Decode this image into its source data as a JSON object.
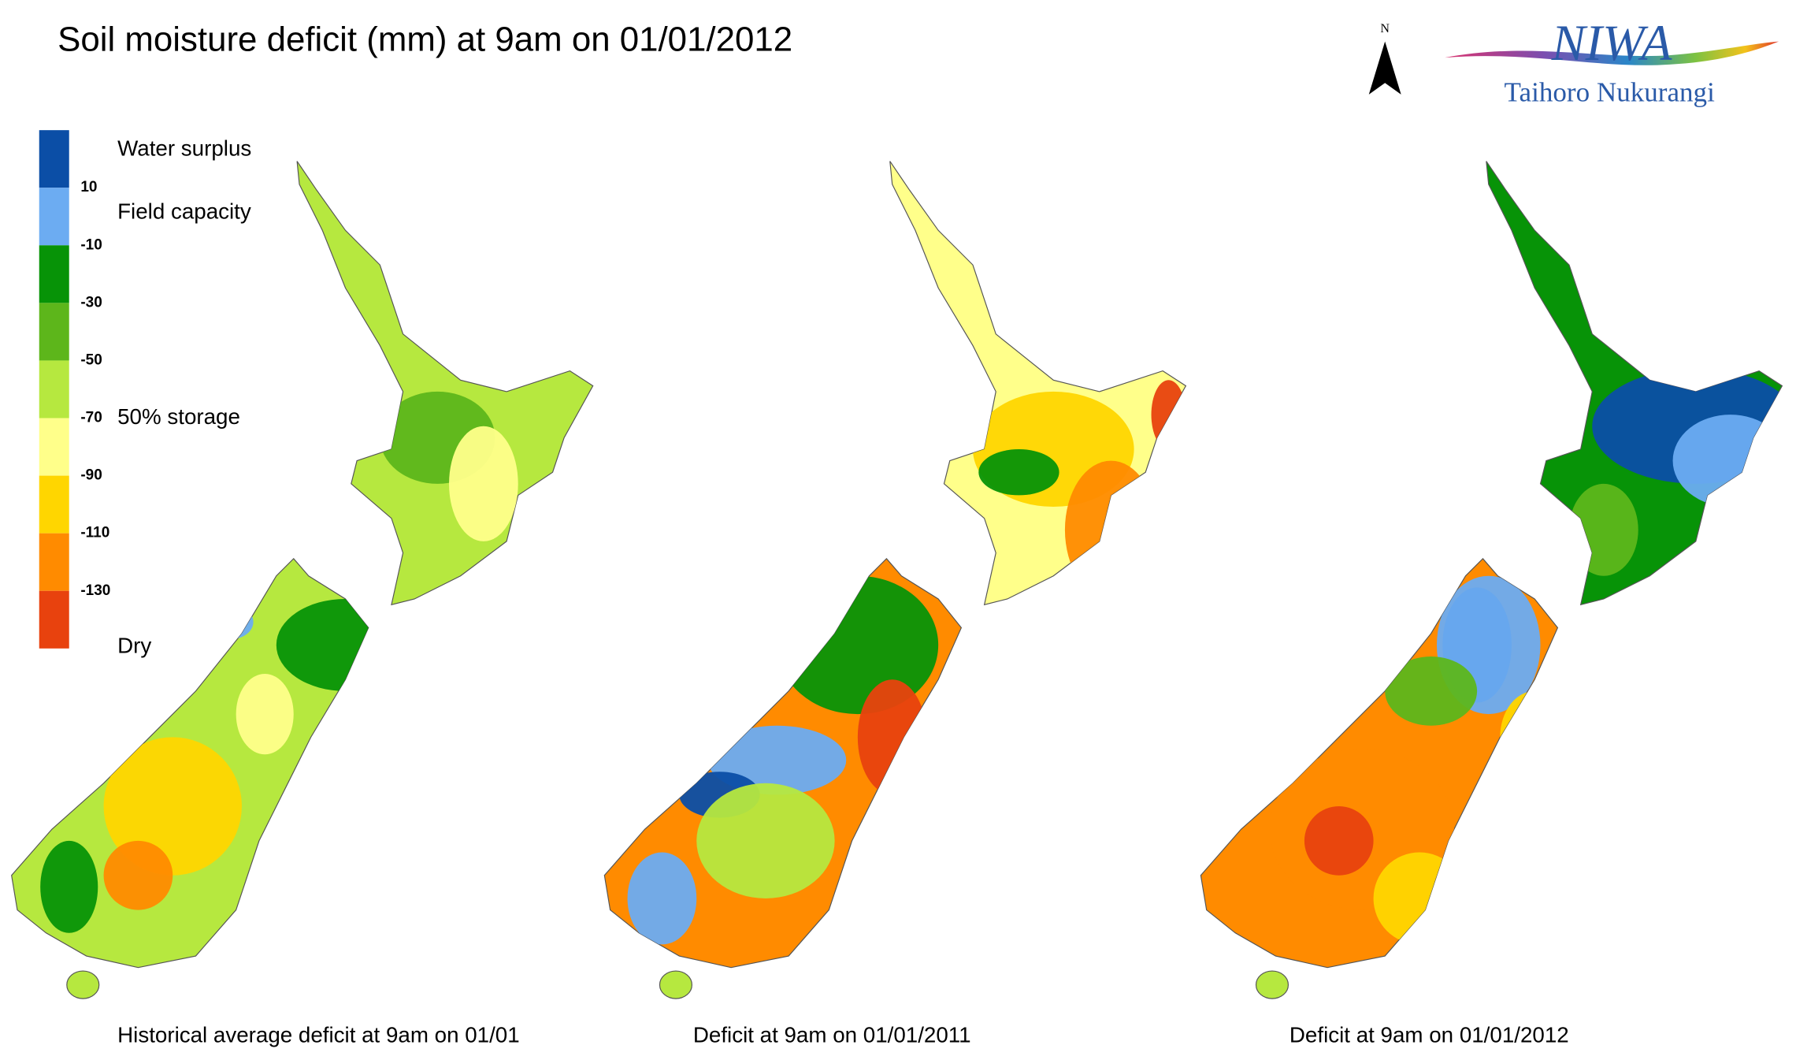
{
  "header": {
    "title": "Soil moisture deficit (mm) at  9am on 01/01/2012",
    "north": "N",
    "logo": "NIWA",
    "logo_subtitle": "Taihoro Nukurangi"
  },
  "legend": {
    "colors": [
      "#0b4ea6",
      "#6cacf2",
      "#079307",
      "#5db61b",
      "#b6e83f",
      "#ffff8a",
      "#ffd600",
      "#ff8b00",
      "#e8420e"
    ],
    "ticks": [
      10,
      -10,
      -30,
      -50,
      -70,
      -90,
      -110,
      -130
    ],
    "labels": [
      "Water surplus",
      "Field capacity",
      "50% storage",
      "Dry"
    ]
  },
  "maps": [
    {
      "caption": "Historical average deficit at  9am on 01/01"
    },
    {
      "caption": "Deficit at  9am on 01/01/2011"
    },
    {
      "caption": "Deficit at  9am on 01/01/2012"
    }
  ]
}
